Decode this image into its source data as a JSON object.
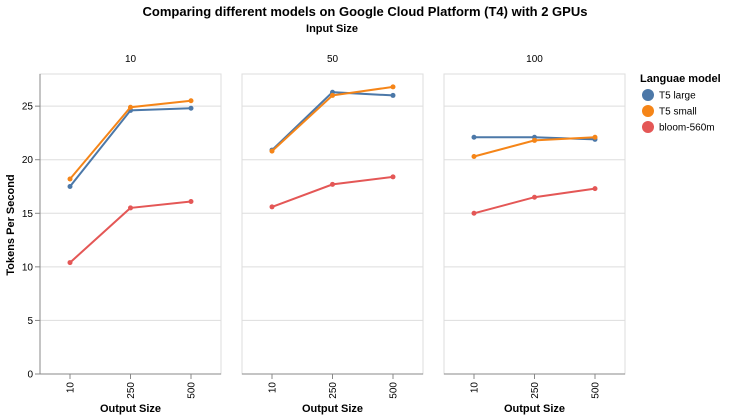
{
  "chart_data": {
    "type": "line",
    "title": "Comparing different models on Google Cloud Platform (T4) with 2 GPUs",
    "facet_title": "Input Size",
    "xlabel": "Output Size",
    "ylabel": "Tokens Per Second",
    "categories": [
      "10",
      "250",
      "500"
    ],
    "ylim": [
      0,
      28
    ],
    "yticks": [
      "0",
      "5",
      "10",
      "15",
      "20",
      "25"
    ],
    "grid": true,
    "legend_title": "Languae model",
    "legend_position": "right",
    "panels": [
      {
        "facet": "10",
        "series": [
          {
            "name": "T5 large",
            "color": "#4c78a8",
            "values": [
              17.5,
              24.6,
              24.8
            ]
          },
          {
            "name": "T5 small",
            "color": "#f58518",
            "values": [
              18.2,
              24.9,
              25.5
            ]
          },
          {
            "name": "bloom-560m",
            "color": "#e45756",
            "values": [
              10.4,
              15.5,
              16.1
            ]
          }
        ]
      },
      {
        "facet": "50",
        "series": [
          {
            "name": "T5 large",
            "color": "#4c78a8",
            "values": [
              20.9,
              26.3,
              26.0
            ]
          },
          {
            "name": "T5 small",
            "color": "#f58518",
            "values": [
              20.8,
              26.0,
              26.8
            ]
          },
          {
            "name": "bloom-560m",
            "color": "#e45756",
            "values": [
              15.6,
              17.7,
              18.4
            ]
          }
        ]
      },
      {
        "facet": "100",
        "series": [
          {
            "name": "T5 large",
            "color": "#4c78a8",
            "values": [
              22.1,
              22.1,
              21.9
            ]
          },
          {
            "name": "T5 small",
            "color": "#f58518",
            "values": [
              20.3,
              21.8,
              22.1
            ]
          },
          {
            "name": "bloom-560m",
            "color": "#e45756",
            "values": [
              15.0,
              16.5,
              17.3
            ]
          }
        ]
      }
    ],
    "legend": [
      {
        "label": "T5 large",
        "color": "#4c78a8"
      },
      {
        "label": "T5 small",
        "color": "#f58518"
      },
      {
        "label": "bloom-560m",
        "color": "#e45756"
      }
    ]
  }
}
